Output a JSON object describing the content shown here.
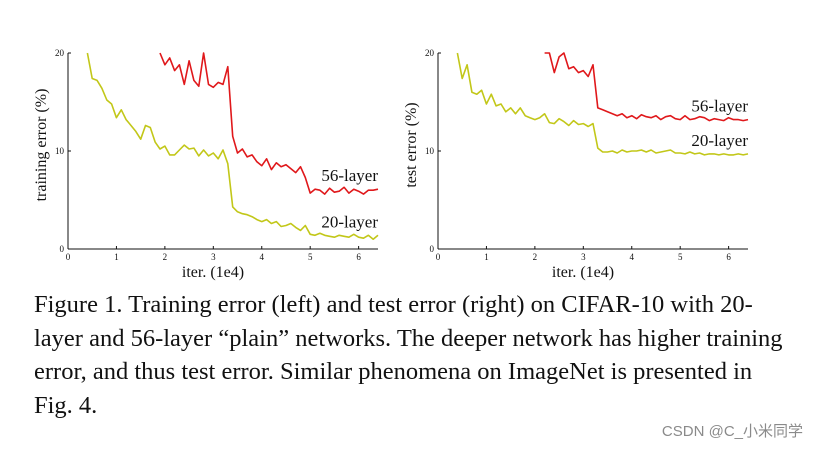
{
  "chart_data": [
    {
      "type": "line",
      "ylabel": "training error (%)",
      "xlabel": "iter. (1e4)",
      "xlim": [
        0,
        6.4
      ],
      "ylim": [
        0,
        20
      ],
      "xticks": [
        0,
        1,
        2,
        3,
        4,
        5,
        6
      ],
      "yticks": [
        0,
        10,
        20
      ],
      "grid": false,
      "legend": "inline-labels",
      "series": [
        {
          "name": "56-layer",
          "color": "#e0181b",
          "x": [
            1.9,
            2.0,
            2.1,
            2.2,
            2.3,
            2.4,
            2.5,
            2.6,
            2.7,
            2.8,
            2.9,
            3.0,
            3.1,
            3.2,
            3.3,
            3.4,
            3.5,
            3.6,
            3.7,
            3.8,
            3.9,
            4.0,
            4.1,
            4.2,
            4.3,
            4.4,
            4.5,
            4.6,
            4.7,
            4.8,
            4.9,
            5.0,
            5.1,
            5.2,
            5.3,
            5.4,
            5.5,
            5.6,
            5.7,
            5.8,
            5.9,
            6.0,
            6.1,
            6.2,
            6.3,
            6.4
          ],
          "values": [
            20,
            18.8,
            19.5,
            18.2,
            18.8,
            16.8,
            19.2,
            17.2,
            16.6,
            20.0,
            16.8,
            16.5,
            17.0,
            16.8,
            18.6,
            11.5,
            9.8,
            10.2,
            9.4,
            9.6,
            8.9,
            8.5,
            9.2,
            8.1,
            8.8,
            8.4,
            8.6,
            8.2,
            7.8,
            8.4,
            7.3,
            5.7,
            6.1,
            6.0,
            5.6,
            6.2,
            5.8,
            5.9,
            6.3,
            5.7,
            6.1,
            5.9,
            5.6,
            6.0,
            6.0,
            6.1
          ]
        },
        {
          "name": "20-layer",
          "color": "#c2c719",
          "x": [
            0.4,
            0.5,
            0.6,
            0.7,
            0.8,
            0.9,
            1.0,
            1.1,
            1.2,
            1.3,
            1.4,
            1.5,
            1.6,
            1.7,
            1.8,
            1.9,
            2.0,
            2.1,
            2.2,
            2.3,
            2.4,
            2.5,
            2.6,
            2.7,
            2.8,
            2.9,
            3.0,
            3.1,
            3.2,
            3.3,
            3.4,
            3.5,
            3.6,
            3.7,
            3.8,
            3.9,
            4.0,
            4.1,
            4.2,
            4.3,
            4.4,
            4.5,
            4.6,
            4.7,
            4.8,
            4.9,
            5.0,
            5.1,
            5.2,
            5.3,
            5.4,
            5.5,
            5.6,
            5.7,
            5.8,
            5.9,
            6.0,
            6.1,
            6.2,
            6.3,
            6.4
          ],
          "values": [
            20,
            17.4,
            17.2,
            16.4,
            15.2,
            14.8,
            13.4,
            14.2,
            13.2,
            12.6,
            12.0,
            11.2,
            12.6,
            12.4,
            10.9,
            10.2,
            10.5,
            9.6,
            9.6,
            10.1,
            10.6,
            10.2,
            10.3,
            9.5,
            10.1,
            9.5,
            9.8,
            9.2,
            10.1,
            8.7,
            4.3,
            3.8,
            3.6,
            3.5,
            3.3,
            3.0,
            2.8,
            3.0,
            2.6,
            2.8,
            2.3,
            2.4,
            2.6,
            2.2,
            1.9,
            2.4,
            1.5,
            1.4,
            1.6,
            1.4,
            1.3,
            1.2,
            1.4,
            1.3,
            1.2,
            1.5,
            1.2,
            1.1,
            1.4,
            1.0,
            1.4
          ]
        }
      ]
    },
    {
      "type": "line",
      "ylabel": "test error (%)",
      "xlabel": "iter. (1e4)",
      "xlim": [
        0,
        6.4
      ],
      "ylim": [
        0,
        20
      ],
      "xticks": [
        0,
        1,
        2,
        3,
        4,
        5,
        6
      ],
      "yticks": [
        0,
        10,
        20
      ],
      "grid": false,
      "legend": "inline-labels",
      "series": [
        {
          "name": "56-layer",
          "color": "#e0181b",
          "x": [
            2.2,
            2.3,
            2.4,
            2.5,
            2.6,
            2.7,
            2.8,
            2.9,
            3.0,
            3.1,
            3.2,
            3.3,
            3.4,
            3.5,
            3.6,
            3.7,
            3.8,
            3.9,
            4.0,
            4.1,
            4.2,
            4.3,
            4.4,
            4.5,
            4.6,
            4.7,
            4.8,
            4.9,
            5.0,
            5.1,
            5.2,
            5.3,
            5.4,
            5.5,
            5.6,
            5.7,
            5.8,
            5.9,
            6.0,
            6.1,
            6.2,
            6.3,
            6.4
          ],
          "values": [
            20,
            20.0,
            18.0,
            19.6,
            20.0,
            18.4,
            18.6,
            18.0,
            18.2,
            17.6,
            18.8,
            14.4,
            14.2,
            14.0,
            13.8,
            13.6,
            13.8,
            13.4,
            13.6,
            13.3,
            13.7,
            13.5,
            13.4,
            13.6,
            13.2,
            13.5,
            13.6,
            13.3,
            13.2,
            13.6,
            13.2,
            13.3,
            13.5,
            13.4,
            13.1,
            13.3,
            13.2,
            13.1,
            13.4,
            13.2,
            13.2,
            13.1,
            13.2
          ]
        },
        {
          "name": "20-layer",
          "color": "#c2c719",
          "x": [
            0.4,
            0.5,
            0.6,
            0.7,
            0.8,
            0.9,
            1.0,
            1.1,
            1.2,
            1.3,
            1.4,
            1.5,
            1.6,
            1.7,
            1.8,
            1.9,
            2.0,
            2.1,
            2.2,
            2.3,
            2.4,
            2.5,
            2.6,
            2.7,
            2.8,
            2.9,
            3.0,
            3.1,
            3.2,
            3.3,
            3.4,
            3.5,
            3.6,
            3.7,
            3.8,
            3.9,
            4.0,
            4.1,
            4.2,
            4.3,
            4.4,
            4.5,
            4.6,
            4.7,
            4.8,
            4.9,
            5.0,
            5.1,
            5.2,
            5.3,
            5.4,
            5.5,
            5.6,
            5.7,
            5.8,
            5.9,
            6.0,
            6.1,
            6.2,
            6.3,
            6.4
          ],
          "values": [
            20,
            17.4,
            18.8,
            16.0,
            15.8,
            16.2,
            14.8,
            15.8,
            14.6,
            14.8,
            14.0,
            14.4,
            13.8,
            14.4,
            13.6,
            13.4,
            13.2,
            13.4,
            13.8,
            12.9,
            12.8,
            13.3,
            13.0,
            12.6,
            13.1,
            12.7,
            12.8,
            12.5,
            12.8,
            10.3,
            9.9,
            9.9,
            10.0,
            9.8,
            10.1,
            9.9,
            10.0,
            10.0,
            10.1,
            9.9,
            10.1,
            9.8,
            9.9,
            10.0,
            10.1,
            9.8,
            9.8,
            9.7,
            9.9,
            9.7,
            9.8,
            9.6,
            9.7,
            9.7,
            9.6,
            9.7,
            9.6,
            9.6,
            9.7,
            9.6,
            9.7
          ]
        }
      ]
    }
  ],
  "caption": "Figure 1. Training error (left) and test error (right) on CIFAR-10 with 20-layer and 56-layer “plain” networks. The deeper network has higher training error, and thus test error. Similar phenomena on ImageNet is presented in Fig. 4.",
  "watermark": "CSDN @C_小米同学"
}
